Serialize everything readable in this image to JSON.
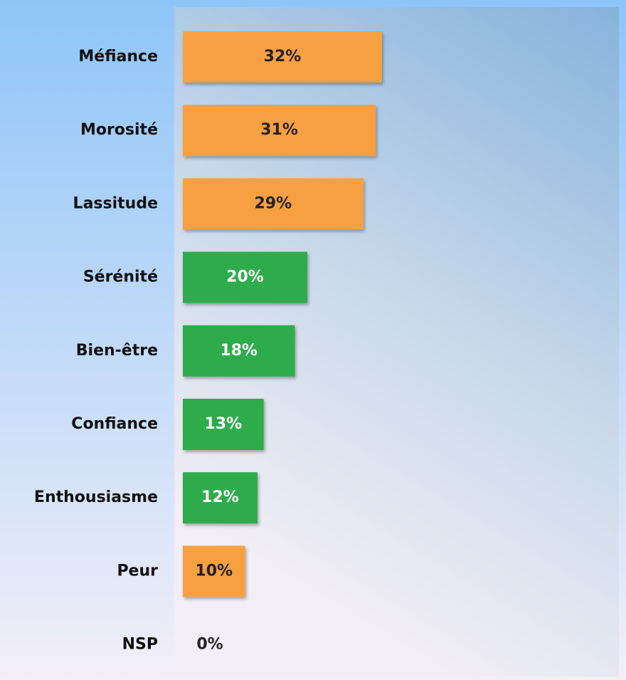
{
  "chart_data": {
    "type": "bar",
    "orientation": "horizontal",
    "categories": [
      "Méfiance",
      "Morosité",
      "Lassitude",
      "Sérénité",
      "Bien-être",
      "Confiance",
      "Enthousiasme",
      "Peur",
      "NSP"
    ],
    "values": [
      32,
      31,
      29,
      20,
      18,
      13,
      12,
      10,
      0
    ],
    "value_labels": [
      "32%",
      "31%",
      "29%",
      "20%",
      "18%",
      "13%",
      "12%",
      "10%",
      "0%"
    ],
    "colors": [
      "#f7a043",
      "#f7a043",
      "#f7a043",
      "#2fac4b",
      "#2fac4b",
      "#2fac4b",
      "#2fac4b",
      "#f7a043",
      "#f7a043"
    ],
    "value_label_colors": [
      "#222222",
      "#222222",
      "#222222",
      "#ffffff",
      "#ffffff",
      "#ffffff",
      "#ffffff",
      "#222222",
      "#222222"
    ]
  }
}
